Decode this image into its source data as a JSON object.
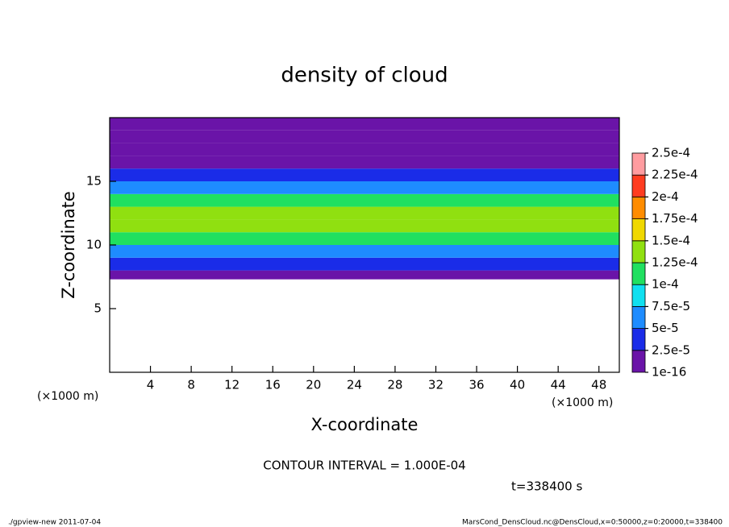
{
  "chart_data": {
    "type": "heatmap",
    "title": "density of cloud",
    "x_label": "X-coordinate",
    "y_label": "Z-coordinate",
    "x_unit": "(×1000 m)",
    "y_unit": "(×1000 m)",
    "xlim": [
      0,
      50
    ],
    "xticks": [
      4,
      8,
      12,
      16,
      20,
      24,
      28,
      32,
      36,
      40,
      44,
      48
    ],
    "ylim": [
      0,
      20
    ],
    "yticks": [
      5,
      10,
      15
    ],
    "z_bins": [
      7.3,
      8,
      9,
      10,
      11,
      12,
      13,
      14,
      15,
      16,
      17,
      18,
      19,
      20
    ],
    "values": [
      2e-05,
      4e-05,
      7e-05,
      0.00011,
      0.00013,
      0.00013,
      0.000105,
      6e-05,
      3e-05,
      1.5e-05,
      8e-06,
      5e-06,
      3e-06
    ],
    "colorbar": {
      "levels": [
        {
          "value": 1e-16,
          "label": "1e-16"
        },
        {
          "value": 2.5e-05,
          "label": "2.5e-5"
        },
        {
          "value": 5e-05,
          "label": "5e-5"
        },
        {
          "value": 7.5e-05,
          "label": "7.5e-5"
        },
        {
          "value": 0.0001,
          "label": "1e-4"
        },
        {
          "value": 0.000125,
          "label": "1.25e-4"
        },
        {
          "value": 0.00015,
          "label": "1.5e-4"
        },
        {
          "value": 0.000175,
          "label": "1.75e-4"
        },
        {
          "value": 0.0002,
          "label": "2e-4"
        },
        {
          "value": 0.000225,
          "label": "2.25e-4"
        },
        {
          "value": 0.00025,
          "label": "2.5e-4"
        }
      ],
      "colors": [
        "#6a14a8",
        "#1a2ce8",
        "#1e8cff",
        "#10e0f0",
        "#20e060",
        "#90e010",
        "#f0d800",
        "#ff8c00",
        "#ff3c20",
        "#ff9ca0"
      ]
    },
    "contour_interval": "CONTOUR INTERVAL = 1.000E-04",
    "time": "t=338400 s",
    "footer_left": "./gpview-new  2011-07-04",
    "footer_right": "MarsCond_DensCloud.nc@DensCloud,x=0:50000,z=0:20000,t=338400"
  }
}
